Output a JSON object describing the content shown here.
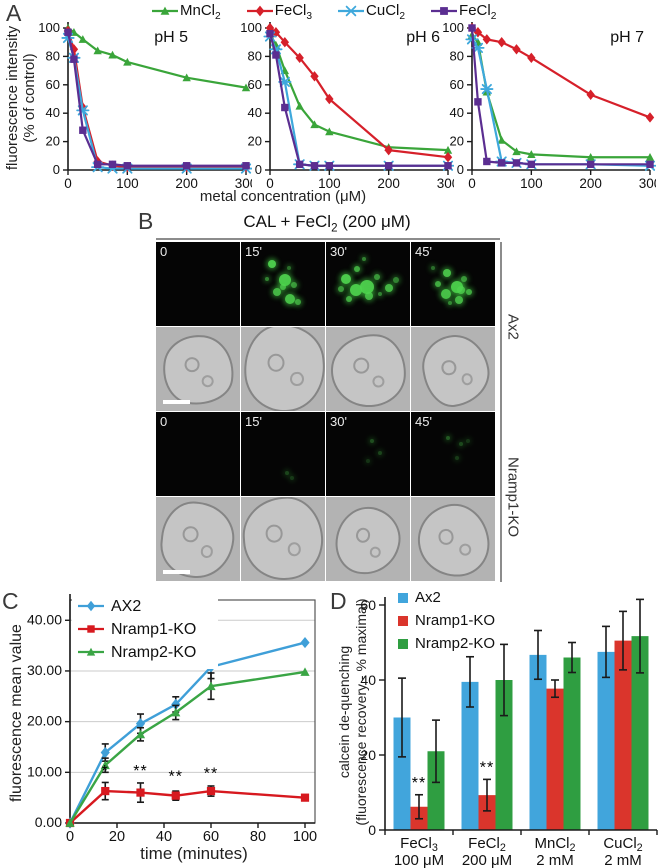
{
  "panelA": {
    "label": "A",
    "legend": [
      {
        "base": "MnCl",
        "sub": "2",
        "color": "#3aa53a",
        "marker": "triangle"
      },
      {
        "base": "FeCl",
        "sub": "3",
        "color": "#d6202a",
        "marker": "diamond"
      },
      {
        "base": "CuCl",
        "sub": "2",
        "color": "#3ea8dc",
        "marker": "xline"
      },
      {
        "base": "FeCl",
        "sub": "2",
        "color": "#5b2e91",
        "marker": "square"
      }
    ],
    "ylabel_lines": [
      "fluorescence intensity",
      "(% of control)"
    ],
    "xlabel": "metal concentration (μM)"
  },
  "panelB": {
    "label": "B",
    "title": {
      "base": "CAL + FeCl",
      "sub": "2",
      "suffix": " (200 μM)"
    },
    "row_groups": [
      {
        "name": "Ax2",
        "frame_labels": [
          "0",
          "15'",
          "30'",
          "45'"
        ],
        "fluor_dots": [
          [],
          [
            [
              32,
              22,
              4,
              0.95
            ],
            [
              45,
              38,
              6,
              0.95
            ],
            [
              38,
              55,
              4,
              0.85
            ],
            [
              52,
              62,
              5,
              0.9
            ],
            [
              60,
              48,
              3,
              0.7
            ],
            [
              28,
              42,
              2,
              0.6
            ],
            [
              64,
              68,
              3,
              0.75
            ],
            [
              55,
              28,
              2,
              0.5
            ],
            [
              47,
              50,
              3,
              0.8
            ]
          ],
          [
            [
              18,
              38,
              5,
              0.95
            ],
            [
              28,
              50,
              6,
              0.95
            ],
            [
              40,
              45,
              7,
              0.95
            ],
            [
              33,
              28,
              3,
              0.8
            ],
            [
              47,
              60,
              4,
              0.85
            ],
            [
              24,
              64,
              3,
              0.8
            ],
            [
              57,
              38,
              3,
              0.7
            ],
            [
              70,
              50,
              4,
              0.85
            ],
            [
              80,
              42,
              3,
              0.6
            ],
            [
              14,
              52,
              3,
              0.7
            ],
            [
              43,
              18,
              2,
              0.6
            ],
            [
              62,
              60,
              2,
              0.6
            ]
          ],
          [
            [
              38,
              32,
              4,
              0.9
            ],
            [
              48,
              46,
              6,
              0.95
            ],
            [
              36,
              56,
              5,
              0.9
            ],
            [
              52,
              64,
              4,
              0.85
            ],
            [
              29,
              46,
              3,
              0.8
            ],
            [
              59,
              40,
              3,
              0.7
            ],
            [
              44,
              70,
              2,
              0.6
            ],
            [
              65,
              56,
              3,
              0.8
            ],
            [
              55,
              52,
              4,
              0.85
            ],
            [
              24,
              28,
              2,
              0.5
            ]
          ]
        ]
      },
      {
        "name": "Nramp1-KO",
        "frame_labels": [
          "0",
          "15'",
          "30'",
          "45'"
        ],
        "fluor_dots": [
          [],
          [
            [
              52,
              70,
              2,
              0.3
            ],
            [
              58,
              76,
              2,
              0.25
            ]
          ],
          [
            [
              52,
              32,
              2,
              0.35
            ],
            [
              62,
              46,
              2,
              0.3
            ],
            [
              48,
              56,
              2,
              0.22
            ]
          ],
          [
            [
              42,
              28,
              2,
              0.4
            ],
            [
              57,
              36,
              2,
              0.32
            ],
            [
              52,
              52,
              2,
              0.26
            ],
            [
              66,
              32,
              2,
              0.22
            ]
          ]
        ]
      }
    ]
  },
  "chart_data": [
    {
      "id": "pH5",
      "type": "line",
      "title": "pH 5",
      "x": [
        0,
        10,
        25,
        50,
        75,
        100,
        200,
        300
      ],
      "series": [
        {
          "name": "MnCl2",
          "color": "#3aa53a",
          "marker": "triangle",
          "values": [
            100,
            97,
            92,
            84,
            81,
            76,
            65,
            58
          ]
        },
        {
          "name": "FeCl3",
          "color": "#d6202a",
          "marker": "diamond",
          "values": [
            98,
            85,
            44,
            6,
            3,
            2,
            2,
            2
          ]
        },
        {
          "name": "CuCl2",
          "color": "#3ea8dc",
          "marker": "xline",
          "values": [
            93,
            79,
            42,
            2,
            1,
            1,
            1,
            1
          ]
        },
        {
          "name": "FeCl2",
          "color": "#5b2e91",
          "marker": "square",
          "values": [
            97,
            78,
            28,
            4,
            4,
            3,
            3,
            3
          ]
        }
      ],
      "xlim": [
        0,
        300
      ],
      "ylim": [
        0,
        100
      ],
      "xticks": [
        0,
        100,
        200,
        300
      ],
      "yticks": [
        0,
        20,
        40,
        60,
        80,
        100
      ],
      "grid": false,
      "legend_position": "shared-top"
    },
    {
      "id": "pH6",
      "type": "line",
      "title": "pH 6",
      "x": [
        0,
        10,
        25,
        50,
        75,
        100,
        200,
        300
      ],
      "series": [
        {
          "name": "MnCl2",
          "color": "#3aa53a",
          "marker": "triangle",
          "values": [
            96,
            88,
            70,
            45,
            32,
            27,
            16,
            14
          ]
        },
        {
          "name": "FeCl3",
          "color": "#d6202a",
          "marker": "diamond",
          "values": [
            100,
            97,
            90,
            79,
            66,
            50,
            14,
            9
          ]
        },
        {
          "name": "CuCl2",
          "color": "#3ea8dc",
          "marker": "xline",
          "values": [
            94,
            85,
            62,
            4,
            3,
            3,
            3,
            3
          ]
        },
        {
          "name": "FeCl2",
          "color": "#5b2e91",
          "marker": "square",
          "values": [
            96,
            81,
            44,
            4,
            3,
            3,
            3,
            3
          ]
        }
      ],
      "xlim": [
        0,
        300
      ],
      "ylim": [
        0,
        100
      ],
      "xticks": [
        0,
        100,
        200,
        300
      ],
      "yticks": [
        0,
        20,
        40,
        60,
        80,
        100
      ],
      "grid": false,
      "legend_position": "shared-top"
    },
    {
      "id": "pH7",
      "type": "line",
      "title": "pH 7",
      "x": [
        0,
        10,
        25,
        50,
        75,
        100,
        200,
        300
      ],
      "series": [
        {
          "name": "MnCl2",
          "color": "#3aa53a",
          "marker": "triangle",
          "values": [
            95,
            90,
            55,
            21,
            13,
            11,
            9,
            9
          ]
        },
        {
          "name": "FeCl3",
          "color": "#d6202a",
          "marker": "diamond",
          "values": [
            100,
            97,
            92,
            90,
            85,
            79,
            53,
            37
          ]
        },
        {
          "name": "CuCl2",
          "color": "#3ea8dc",
          "marker": "xline",
          "values": [
            92,
            86,
            57,
            6,
            5,
            4,
            4,
            3
          ]
        },
        {
          "name": "FeCl2",
          "color": "#5b2e91",
          "marker": "square",
          "values": [
            100,
            48,
            6,
            5,
            5,
            4,
            4,
            4
          ]
        }
      ],
      "xlim": [
        0,
        300
      ],
      "ylim": [
        0,
        100
      ],
      "xticks": [
        0,
        100,
        200,
        300
      ],
      "yticks": [
        0,
        20,
        40,
        60,
        80,
        100
      ],
      "grid": false,
      "legend_position": "shared-top"
    },
    {
      "id": "panelC",
      "type": "line",
      "label": "C",
      "ylabel": "fluorescence mean value",
      "xlabel": "time (minutes)",
      "x": [
        0,
        15,
        30,
        45,
        60,
        100
      ],
      "series": [
        {
          "name": "AX2",
          "color": "#3f9fd8",
          "marker": "diamond",
          "values": [
            0,
            13.9,
            19.6,
            23.4,
            30.8,
            35.6
          ],
          "errors": [
            0,
            1.7,
            1.9,
            1.5,
            2.3,
            0
          ]
        },
        {
          "name": "Nramp1-KO",
          "color": "#d7191f",
          "marker": "square",
          "values": [
            0,
            6.3,
            6.0,
            5.4,
            6.3,
            5.0
          ],
          "errors": [
            0,
            1.7,
            1.9,
            0.9,
            1.0,
            0
          ]
        },
        {
          "name": "Nramp2-KO",
          "color": "#3aa545",
          "marker": "triangle",
          "values": [
            0,
            11.4,
            17.5,
            21.8,
            27.0,
            29.8
          ],
          "errors": [
            0,
            1.4,
            1.3,
            1.4,
            2.6,
            0
          ]
        }
      ],
      "significance": [
        {
          "x": 15,
          "y": 9.3,
          "label": "*"
        },
        {
          "x": 30,
          "y": 9.3,
          "label": "**"
        },
        {
          "x": 45,
          "y": 8.2,
          "label": "**"
        },
        {
          "x": 60,
          "y": 8.8,
          "label": "**"
        }
      ],
      "xlim": [
        0,
        100
      ],
      "ylim": [
        0,
        44
      ],
      "xticks": [
        0,
        20,
        40,
        60,
        80,
        100
      ],
      "yticks": [
        0,
        10,
        20,
        30,
        40
      ],
      "ytick_labels": [
        "0.00",
        "10.00",
        "20.00",
        "30.00",
        "40.00"
      ],
      "grid": true,
      "legend_position": "top-left"
    },
    {
      "id": "panelD",
      "type": "bar",
      "label": "D",
      "ylabel_lines": [
        "calcein de-quenching",
        "(fluorescence recovery - % maximal)"
      ],
      "groups": [
        {
          "base": "FeCl",
          "sub": "3",
          "line2": "100 μM"
        },
        {
          "base": "FeCl",
          "sub": "2",
          "line2": "200 μM"
        },
        {
          "base": "MnCl",
          "sub": "2",
          "line2": "2 mM"
        },
        {
          "base": "CuCl",
          "sub": "2",
          "line2": "2 mM"
        }
      ],
      "series": [
        {
          "name": "Ax2",
          "color": "#41a5dc",
          "values": [
            30,
            39.5,
            46.7,
            47.5
          ],
          "errors": [
            10.5,
            6.7,
            6.5,
            6.8
          ]
        },
        {
          "name": "Nramp1-KO",
          "color": "#da352c",
          "values": [
            6.2,
            9.3,
            37.7,
            50.5
          ],
          "errors": [
            3.2,
            4.2,
            2.3,
            7.8
          ]
        },
        {
          "name": "Nramp2-KO",
          "color": "#2f9e41",
          "values": [
            21,
            40,
            46,
            51.7
          ],
          "errors": [
            8.3,
            9.5,
            4,
            9.8
          ]
        }
      ],
      "significance": [
        {
          "group": 0,
          "series": 1,
          "label": "**"
        },
        {
          "group": 1,
          "series": 1,
          "label": "**"
        }
      ],
      "ylim": [
        0,
        60
      ],
      "yticks": [
        0,
        20,
        40,
        60
      ],
      "grid": false,
      "legend_position": "top-left"
    }
  ]
}
